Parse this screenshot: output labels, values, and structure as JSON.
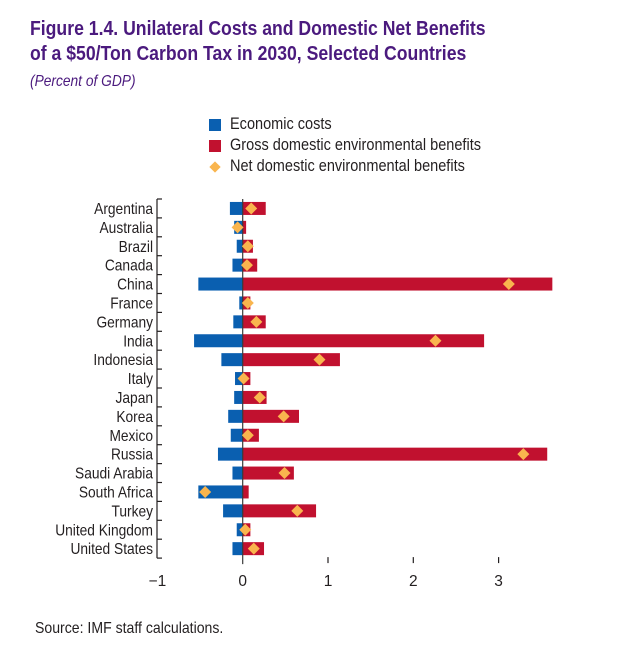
{
  "title_line1": "Figure 1.4. Unilateral Costs and Domestic Net Benefits",
  "title_line2": "of a $50/Ton Carbon Tax in 2030, Selected Countries",
  "subtitle": "(Percent of GDP)",
  "source": "Source: IMF staff calculations.",
  "colors": {
    "title": "#4b1a7e",
    "costs": "#0a5fb0",
    "gross": "#c1112f",
    "net": "#f9b54e",
    "axis": "#231f20"
  },
  "legend": [
    {
      "label": "Economic costs",
      "kind": "square",
      "color": "#0a5fb0"
    },
    {
      "label": "Gross domestic environmental benefits",
      "kind": "square",
      "color": "#c1112f"
    },
    {
      "label": "Net domestic environmental benefits",
      "kind": "diamond",
      "color": "#f9b54e"
    }
  ],
  "chart_data": {
    "type": "bar",
    "orientation": "horizontal",
    "title": "Figure 1.4. Unilateral Costs and Domestic Net Benefits of a $50/Ton Carbon Tax in 2030, Selected Countries",
    "subtitle": "(Percent of GDP)",
    "xlabel": "",
    "ylabel": "",
    "xlim": [
      -1,
      3.7
    ],
    "xticks": [
      -1,
      0,
      1,
      2,
      3
    ],
    "xtick_labels": [
      "−1",
      "0",
      "1",
      "2",
      "3"
    ],
    "grid": false,
    "legend_position": "top-center",
    "categories": [
      "Argentina",
      "Australia",
      "Brazil",
      "Canada",
      "China",
      "France",
      "Germany",
      "India",
      "Indonesia",
      "Italy",
      "Japan",
      "Korea",
      "Mexico",
      "Russia",
      "Saudi Arabia",
      "South Africa",
      "Turkey",
      "United Kingdom",
      "United States"
    ],
    "series": [
      {
        "name": "Economic costs",
        "type": "bar",
        "values": [
          -0.15,
          -0.1,
          -0.07,
          -0.12,
          -0.52,
          -0.04,
          -0.11,
          -0.57,
          -0.25,
          -0.09,
          -0.1,
          -0.17,
          -0.14,
          -0.29,
          -0.12,
          -0.52,
          -0.23,
          -0.07,
          -0.12
        ]
      },
      {
        "name": "Gross domestic environmental benefits",
        "type": "bar",
        "values": [
          0.27,
          0.04,
          0.12,
          0.17,
          3.63,
          0.09,
          0.27,
          2.83,
          1.14,
          0.09,
          0.28,
          0.66,
          0.19,
          3.57,
          0.6,
          0.07,
          0.86,
          0.09,
          0.25
        ]
      },
      {
        "name": "Net domestic environmental benefits",
        "type": "marker",
        "values": [
          0.1,
          -0.06,
          0.06,
          0.05,
          3.12,
          0.06,
          0.16,
          2.26,
          0.9,
          0.01,
          0.2,
          0.48,
          0.06,
          3.29,
          0.49,
          -0.44,
          0.64,
          0.03,
          0.13
        ]
      }
    ]
  }
}
